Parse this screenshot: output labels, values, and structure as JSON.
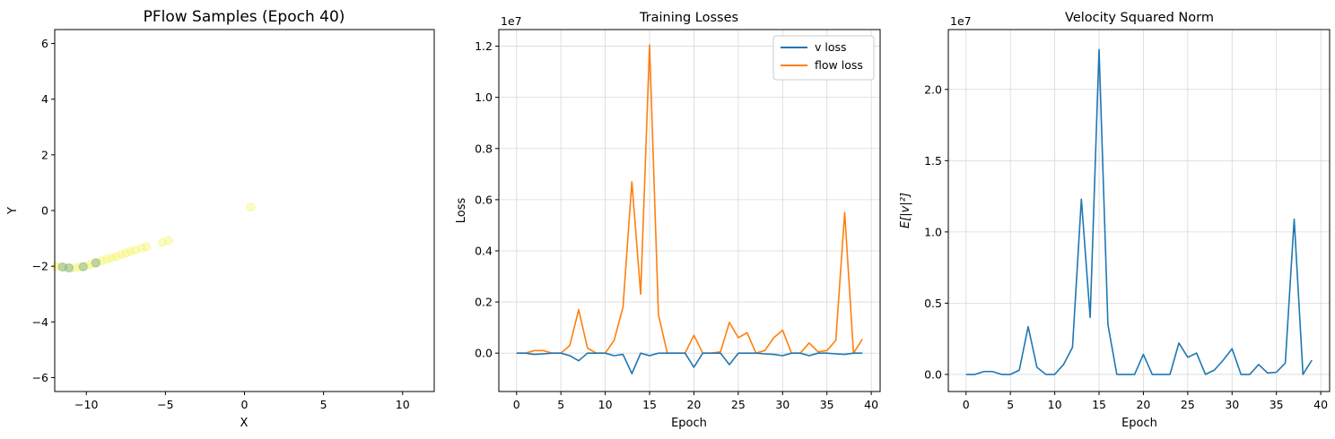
{
  "colors": {
    "v_loss": "#1f77b4",
    "flow_loss": "#ff7f0e",
    "grid": "#d9d9d9",
    "scatter_yellow": "#f5f56a",
    "scatter_teal": "#7fb3a0"
  },
  "chart_data": [
    {
      "type": "scatter",
      "title": "PFlow Samples (Epoch 40)",
      "xlabel": "X",
      "ylabel": "Y",
      "xlim": [
        -12,
        12
      ],
      "ylim": [
        -6.5,
        6.5
      ],
      "xticks": [
        -10,
        -5,
        0,
        5,
        10
      ],
      "yticks": [
        -6,
        -4,
        -2,
        0,
        2,
        4,
        6
      ],
      "xtick_labels": [
        "−10",
        "−5",
        "0",
        "5",
        "10"
      ],
      "ytick_labels": [
        "−6",
        "−4",
        "−2",
        "0",
        "2",
        "4",
        "6"
      ],
      "grid": false,
      "points": [
        {
          "x": -11.9,
          "y": -2.0
        },
        {
          "x": -11.6,
          "y": -2.02
        },
        {
          "x": -11.3,
          "y": -2.05
        },
        {
          "x": -11.0,
          "y": -2.07
        },
        {
          "x": -10.7,
          "y": -2.06
        },
        {
          "x": -10.4,
          "y": -2.03
        },
        {
          "x": -10.1,
          "y": -2.0
        },
        {
          "x": -9.8,
          "y": -1.95
        },
        {
          "x": -9.5,
          "y": -1.9
        },
        {
          "x": -9.3,
          "y": -1.86
        },
        {
          "x": -9.0,
          "y": -1.8
        },
        {
          "x": -8.7,
          "y": -1.75
        },
        {
          "x": -8.4,
          "y": -1.7
        },
        {
          "x": -8.1,
          "y": -1.65
        },
        {
          "x": -7.8,
          "y": -1.58
        },
        {
          "x": -7.5,
          "y": -1.53
        },
        {
          "x": -7.2,
          "y": -1.47
        },
        {
          "x": -6.9,
          "y": -1.42
        },
        {
          "x": -6.5,
          "y": -1.35
        },
        {
          "x": -6.2,
          "y": -1.3
        },
        {
          "x": -5.2,
          "y": -1.15
        },
        {
          "x": -4.8,
          "y": -1.08
        },
        {
          "x": 0.4,
          "y": 0.12
        }
      ],
      "teal_points": [
        {
          "x": -11.5,
          "y": -2.03
        },
        {
          "x": -11.1,
          "y": -2.06
        },
        {
          "x": -10.2,
          "y": -2.02
        },
        {
          "x": -9.4,
          "y": -1.88
        }
      ]
    },
    {
      "type": "line",
      "title": "Training Losses",
      "xlabel": "Epoch",
      "ylabel": "Loss",
      "offset_text": "1e7",
      "xlim": [
        -2,
        41
      ],
      "ylim": [
        -0.15,
        1.265
      ],
      "xticks": [
        0,
        5,
        10,
        15,
        20,
        25,
        30,
        35,
        40
      ],
      "yticks": [
        0.0,
        0.2,
        0.4,
        0.6,
        0.8,
        1.0,
        1.2
      ],
      "ytick_labels": [
        "0.0",
        "0.2",
        "0.4",
        "0.6",
        "0.8",
        "1.0",
        "1.2"
      ],
      "grid": true,
      "legend_position": "top-right",
      "x": [
        0,
        1,
        2,
        3,
        4,
        5,
        6,
        7,
        8,
        9,
        10,
        11,
        12,
        13,
        14,
        15,
        16,
        17,
        18,
        19,
        20,
        21,
        22,
        23,
        24,
        25,
        26,
        27,
        28,
        29,
        30,
        31,
        32,
        33,
        34,
        35,
        36,
        37,
        38,
        39
      ],
      "series": [
        {
          "name": "v loss",
          "values": [
            0,
            0,
            -0.005,
            -0.003,
            0,
            0,
            -0.01,
            -0.03,
            0,
            0,
            0,
            -0.01,
            -0.005,
            -0.08,
            0,
            -0.01,
            0,
            0,
            0,
            0,
            -0.055,
            0,
            0,
            0,
            -0.045,
            0,
            0,
            0,
            -0.003,
            -0.005,
            -0.01,
            0,
            0,
            -0.01,
            0,
            0,
            -0.003,
            -0.005,
            0,
            0
          ]
        },
        {
          "name": "flow loss",
          "values": [
            0,
            0,
            0.01,
            0.01,
            0,
            0,
            0.03,
            0.17,
            0.02,
            0,
            0,
            0.05,
            0.18,
            0.67,
            0.23,
            1.205,
            0.15,
            0,
            0,
            0,
            0.07,
            0,
            0,
            0.005,
            0.12,
            0.06,
            0.08,
            0,
            0.01,
            0.06,
            0.09,
            0,
            0,
            0.04,
            0.005,
            0.01,
            0.05,
            0.55,
            0,
            0.055
          ]
        }
      ]
    },
    {
      "type": "line",
      "title": "Velocity Squared Norm",
      "xlabel": "Epoch",
      "ylabel": "E[|v|²]",
      "offset_text": "1e7",
      "xlim": [
        -2,
        41
      ],
      "ylim": [
        -0.12,
        2.42
      ],
      "xticks": [
        0,
        5,
        10,
        15,
        20,
        25,
        30,
        35,
        40
      ],
      "yticks": [
        0.0,
        0.5,
        1.0,
        1.5,
        2.0
      ],
      "ytick_labels": [
        "0.0",
        "0.5",
        "1.0",
        "1.5",
        "2.0"
      ],
      "grid": true,
      "x": [
        0,
        1,
        2,
        3,
        4,
        5,
        6,
        7,
        8,
        9,
        10,
        11,
        12,
        13,
        14,
        15,
        16,
        17,
        18,
        19,
        20,
        21,
        22,
        23,
        24,
        25,
        26,
        27,
        28,
        29,
        30,
        31,
        32,
        33,
        34,
        35,
        36,
        37,
        38,
        39
      ],
      "values": [
        0,
        0,
        0.02,
        0.02,
        0,
        0,
        0.03,
        0.335,
        0.05,
        0,
        0,
        0.07,
        0.19,
        1.23,
        0.4,
        2.28,
        0.35,
        0,
        0,
        0,
        0.14,
        0,
        0,
        0,
        0.22,
        0.12,
        0.15,
        0,
        0.03,
        0.1,
        0.18,
        0,
        0,
        0.07,
        0.01,
        0.015,
        0.08,
        1.09,
        0,
        0.1
      ]
    }
  ]
}
